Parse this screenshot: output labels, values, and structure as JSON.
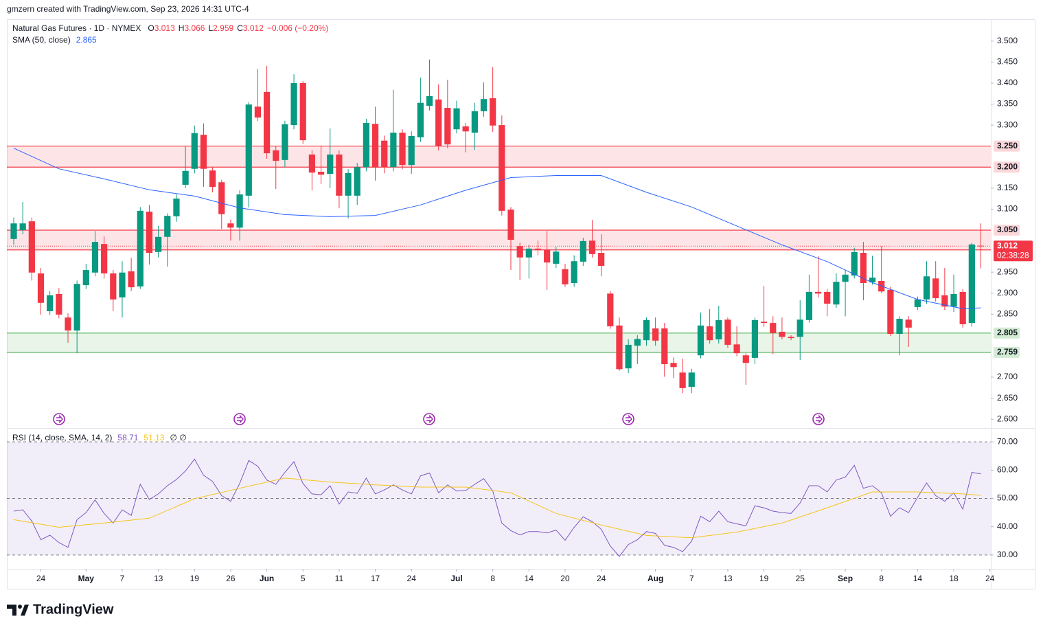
{
  "header": {
    "attribution": "gmzern created with TradingView.com, Sep 23, 2026 14:31 UTC-4",
    "footer": "TradingView"
  },
  "chart_data": [
    {
      "type": "candlestick",
      "title": "Natural Gas Futures · 1D · NYMEX",
      "legend": [
        {
          "key": "O",
          "value": 3.013
        },
        {
          "key": "H",
          "value": 3.066
        },
        {
          "key": "L",
          "value": 2.959
        },
        {
          "key": "C",
          "value": 3.012
        }
      ],
      "change": "−0.006 (−0.20%)",
      "up_color": "#089981",
      "down_color": "#f23645",
      "open": [
        3.029,
        3.05,
        3.071,
        2.947,
        2.857,
        2.898,
        2.842,
        2.811,
        2.919,
        2.949,
        3.017,
        2.947,
        2.89,
        2.952,
        2.916,
        3.094,
        2.998,
        3.034,
        3.083,
        3.158,
        3.196,
        3.277,
        3.192,
        3.164,
        3.066,
        3.056,
        3.132,
        3.344,
        3.379,
        3.24,
        3.217,
        3.3,
        3.4,
        3.23,
        3.189,
        3.184,
        3.23,
        3.132,
        3.132,
        3.2,
        3.303,
        3.263,
        3.2,
        3.282,
        3.205,
        3.271,
        3.346,
        3.361,
        3.341,
        3.29,
        3.297,
        3.282,
        3.333,
        3.364,
        3.3,
        3.099,
        3.012,
        2.985,
        3.006,
        3.004,
        2.97,
        2.957,
        2.924,
        2.975,
        3.025,
        2.996,
        2.899,
        2.823,
        2.721,
        2.775,
        2.788,
        2.816,
        2.816,
        2.734,
        2.711,
        2.677,
        2.752,
        2.821,
        2.79,
        2.837,
        2.778,
        2.752,
        2.746,
        2.832,
        2.829,
        2.808,
        2.796,
        2.796,
        2.836,
        2.903,
        2.903,
        2.873,
        2.927,
        2.942,
        2.996,
        2.926,
        2.929,
        2.908,
        2.803,
        2.837,
        2.867,
        2.885,
        2.935,
        2.895,
        2.868,
        2.903,
        2.829,
        3.013
      ],
      "high": [
        3.08,
        3.117,
        3.08,
        2.96,
        2.905,
        2.912,
        2.852,
        2.93,
        2.97,
        3.048,
        3.035,
        2.955,
        2.976,
        2.984,
        3.105,
        3.11,
        3.06,
        3.09,
        3.135,
        3.251,
        3.299,
        3.304,
        3.2,
        3.17,
        3.075,
        3.145,
        3.355,
        3.434,
        3.441,
        3.25,
        3.31,
        3.421,
        3.405,
        3.24,
        3.251,
        3.292,
        3.24,
        3.195,
        3.21,
        3.315,
        3.344,
        3.275,
        3.384,
        3.29,
        3.285,
        3.413,
        3.456,
        3.397,
        3.408,
        3.358,
        3.305,
        3.353,
        3.402,
        3.438,
        3.323,
        3.105,
        3.02,
        3.015,
        3.025,
        3.048,
        3.01,
        2.97,
        2.99,
        3.032,
        3.074,
        3.04,
        2.905,
        2.842,
        2.79,
        2.8,
        2.842,
        2.842,
        2.829,
        2.747,
        2.744,
        2.72,
        2.854,
        2.862,
        2.87,
        2.842,
        2.821,
        2.757,
        2.842,
        2.917,
        2.845,
        2.842,
        2.8,
        2.883,
        2.944,
        2.988,
        2.91,
        2.947,
        2.955,
        3.008,
        3.022,
        2.989,
        3.012,
        2.915,
        2.845,
        2.845,
        2.892,
        2.976,
        2.976,
        2.96,
        2.944,
        2.91,
        3.02,
        3.066
      ],
      "low": [
        3.015,
        3.04,
        2.93,
        2.849,
        2.848,
        2.84,
        2.782,
        2.757,
        2.91,
        2.94,
        2.935,
        2.857,
        2.842,
        2.905,
        2.91,
        2.968,
        2.985,
        2.963,
        3.07,
        3.15,
        3.185,
        3.153,
        3.14,
        3.053,
        3.025,
        3.025,
        3.104,
        3.31,
        3.22,
        3.148,
        3.2,
        3.29,
        3.255,
        3.145,
        3.16,
        3.15,
        3.102,
        3.078,
        3.11,
        3.19,
        3.168,
        3.185,
        3.19,
        3.195,
        3.184,
        3.26,
        3.335,
        3.24,
        3.245,
        3.28,
        3.235,
        3.241,
        3.32,
        3.284,
        3.085,
        2.955,
        2.931,
        2.935,
        2.99,
        2.908,
        2.96,
        2.915,
        2.915,
        2.965,
        2.985,
        2.94,
        2.815,
        2.715,
        2.71,
        2.731,
        2.775,
        2.775,
        2.701,
        2.698,
        2.662,
        2.662,
        2.745,
        2.78,
        2.78,
        2.77,
        2.75,
        2.682,
        2.731,
        2.82,
        2.755,
        2.79,
        2.788,
        2.741,
        2.83,
        2.89,
        2.845,
        2.865,
        2.845,
        2.935,
        2.883,
        2.92,
        2.9,
        2.798,
        2.752,
        2.772,
        2.86,
        2.875,
        2.88,
        2.86,
        2.855,
        2.818,
        2.82,
        2.959
      ],
      "close": [
        3.066,
        3.066,
        2.949,
        2.877,
        2.895,
        2.849,
        2.811,
        2.922,
        2.955,
        3.022,
        2.947,
        2.885,
        2.949,
        2.914,
        3.096,
        2.996,
        3.034,
        3.084,
        3.125,
        3.191,
        3.281,
        3.196,
        3.153,
        3.088,
        3.056,
        3.135,
        3.349,
        3.318,
        3.233,
        3.215,
        3.302,
        3.4,
        3.264,
        3.187,
        3.182,
        3.23,
        3.132,
        3.186,
        3.2,
        3.305,
        3.199,
        3.2,
        3.282,
        3.205,
        3.274,
        3.353,
        3.369,
        3.251,
        3.254,
        3.34,
        3.285,
        3.333,
        3.362,
        3.299,
        3.096,
        3.027,
        2.985,
        3.006,
        3.003,
        2.973,
        2.999,
        2.921,
        2.976,
        3.024,
        2.993,
        2.965,
        2.821,
        2.719,
        2.777,
        2.791,
        2.836,
        2.787,
        2.731,
        2.724,
        2.674,
        2.711,
        2.823,
        2.788,
        2.836,
        2.777,
        2.757,
        2.734,
        2.836,
        2.829,
        2.805,
        2.796,
        2.793,
        2.837,
        2.903,
        2.899,
        2.875,
        2.927,
        2.944,
        2.998,
        2.924,
        2.937,
        2.904,
        2.803,
        2.839,
        2.818,
        2.885,
        2.94,
        2.888,
        2.868,
        2.898,
        2.826,
        3.016,
        3.012
      ],
      "sma": {
        "name": "SMA (50, close)",
        "value": 2.865,
        "color": "#2962ff",
        "x": [
          0,
          5,
          10,
          15,
          20,
          25,
          30,
          35,
          40,
          45,
          50,
          55,
          60,
          65,
          70,
          75,
          80,
          85,
          90,
          95,
          100,
          105,
          107
        ],
        "values": [
          3.245,
          3.196,
          3.172,
          3.146,
          3.131,
          3.103,
          3.087,
          3.082,
          3.085,
          3.11,
          3.145,
          3.175,
          3.18,
          3.18,
          3.14,
          3.105,
          3.06,
          3.015,
          2.975,
          2.925,
          2.885,
          2.863,
          2.865
        ]
      },
      "zones": [
        {
          "low": {
            "value": 3.2,
            "label": "3.200"
          },
          "high": {
            "value": 3.25,
            "label": "3.250"
          },
          "color": "#f23645"
        },
        {
          "low": 3.003,
          "high": {
            "value": 3.05,
            "label": "3.050"
          },
          "color": "#f23645"
        },
        {
          "low": {
            "value": 2.759,
            "label": "2.759"
          },
          "high": {
            "value": 2.805,
            "label": "2.805"
          },
          "color": "#4caf50"
        }
      ],
      "last_price": {
        "value": 3.012,
        "countdown": "02:38:28"
      },
      "xlim": [
        -0.76,
        108.1
      ],
      "ylim": [
        2.579,
        3.552
      ],
      "yticks": [
        {
          "value": 3.5,
          "label": "3.500"
        },
        {
          "value": 3.45,
          "label": "3.450"
        },
        {
          "value": 3.4,
          "label": "3.400"
        },
        {
          "value": 3.35,
          "label": "3.350"
        },
        {
          "value": 3.3,
          "label": "3.300"
        },
        {
          "value": 3.15,
          "label": "3.150"
        },
        {
          "value": 3.1,
          "label": "3.100"
        },
        {
          "value": 2.95,
          "label": "2.950"
        },
        {
          "value": 2.9,
          "label": "2.900"
        },
        {
          "value": 2.85,
          "label": "2.850"
        },
        {
          "value": 2.7,
          "label": "2.700"
        },
        {
          "value": 2.65,
          "label": "2.650"
        },
        {
          "value": 2.6,
          "label": "2.600"
        }
      ],
      "xticks": [
        {
          "value": 3,
          "label": "24"
        },
        {
          "value": 8,
          "label": "May"
        },
        {
          "value": 12,
          "label": "7"
        },
        {
          "value": 16,
          "label": "13"
        },
        {
          "value": 20,
          "label": "19"
        },
        {
          "value": 24,
          "label": "26"
        },
        {
          "value": 28,
          "label": "Jun"
        },
        {
          "value": 32,
          "label": "5"
        },
        {
          "value": 36,
          "label": "11"
        },
        {
          "value": 40,
          "label": "17"
        },
        {
          "value": 44,
          "label": "24"
        },
        {
          "value": 49,
          "label": "Jul"
        },
        {
          "value": 53,
          "label": "8"
        },
        {
          "value": 57,
          "label": "14"
        },
        {
          "value": 61,
          "label": "20"
        },
        {
          "value": 65,
          "label": "24"
        },
        {
          "value": 71,
          "label": "Aug"
        },
        {
          "value": 75,
          "label": "7"
        },
        {
          "value": 79,
          "label": "13"
        },
        {
          "value": 83,
          "label": "19"
        },
        {
          "value": 87,
          "label": "25"
        },
        {
          "value": 92,
          "label": "Sep"
        },
        {
          "value": 96,
          "label": "8"
        },
        {
          "value": 100,
          "label": "14"
        },
        {
          "value": 104,
          "label": "18"
        },
        {
          "value": 108,
          "label": "24"
        }
      ]
    },
    {
      "type": "line",
      "title": "RSI (14, close, SMA, 14, 2)",
      "legend_extra": "∅ ∅",
      "series": [
        {
          "color": "#7e57c2",
          "value": 58.71,
          "values": [
            45.5,
            46,
            42,
            35.4,
            37,
            34.4,
            32.7,
            42.5,
            45,
            49.5,
            44.7,
            41.3,
            46,
            44,
            55,
            49.6,
            51.6,
            54.5,
            56.7,
            59.7,
            63.9,
            58.2,
            56,
            51,
            49,
            55.3,
            63.4,
            61.4,
            56.5,
            55,
            59.2,
            63,
            55.3,
            51.6,
            51.3,
            54.5,
            48,
            52.3,
            51.8,
            57.2,
            51.6,
            53,
            54.8,
            53,
            51.6,
            58,
            59,
            52,
            54.8,
            52.6,
            52.8,
            55,
            57,
            52.6,
            41.3,
            38.6,
            37.1,
            38.3,
            38.3,
            37.8,
            38.8,
            35.2,
            39.8,
            43.5,
            41.8,
            39.1,
            33.2,
            29.5,
            33.7,
            35.4,
            38.3,
            37.6,
            33.4,
            32.7,
            31.2,
            34.9,
            43.7,
            41.8,
            45.5,
            41.8,
            41,
            40.3,
            47.4,
            46.7,
            45.5,
            45,
            44.7,
            48.4,
            54.5,
            54.5,
            52.3,
            56.5,
            57.5,
            61.7,
            53.6,
            54.5,
            52,
            43.7,
            46.7,
            45,
            50.4,
            55.5,
            51,
            49,
            52,
            46.2,
            59.2,
            58.7
          ]
        },
        {
          "color": "#f5c518",
          "value": 51.13,
          "x": [
            0,
            5,
            10,
            15,
            20,
            25,
            30,
            35,
            40,
            45,
            50,
            55,
            60,
            65,
            70,
            75,
            80,
            85,
            90,
            95,
            100,
            105,
            107
          ],
          "values": [
            42.5,
            39.8,
            41.3,
            43,
            49.9,
            53.6,
            57.2,
            55.8,
            54.8,
            54,
            54,
            52,
            44.7,
            40.6,
            36.9,
            36.1,
            38.1,
            41.3,
            46.7,
            52.3,
            52.3,
            51.6,
            51.1
          ]
        }
      ],
      "levels": [
        70,
        50,
        30
      ],
      "xlim": [
        -0.76,
        108.1
      ],
      "ylim": [
        25.1,
        74.9
      ],
      "yticks": [
        {
          "value": 70,
          "label": "70.00"
        },
        {
          "value": 60,
          "label": "60.00"
        },
        {
          "value": 50,
          "label": "50.00"
        },
        {
          "value": 40,
          "label": "40.00"
        },
        {
          "value": 30,
          "label": "30.00"
        }
      ]
    }
  ]
}
